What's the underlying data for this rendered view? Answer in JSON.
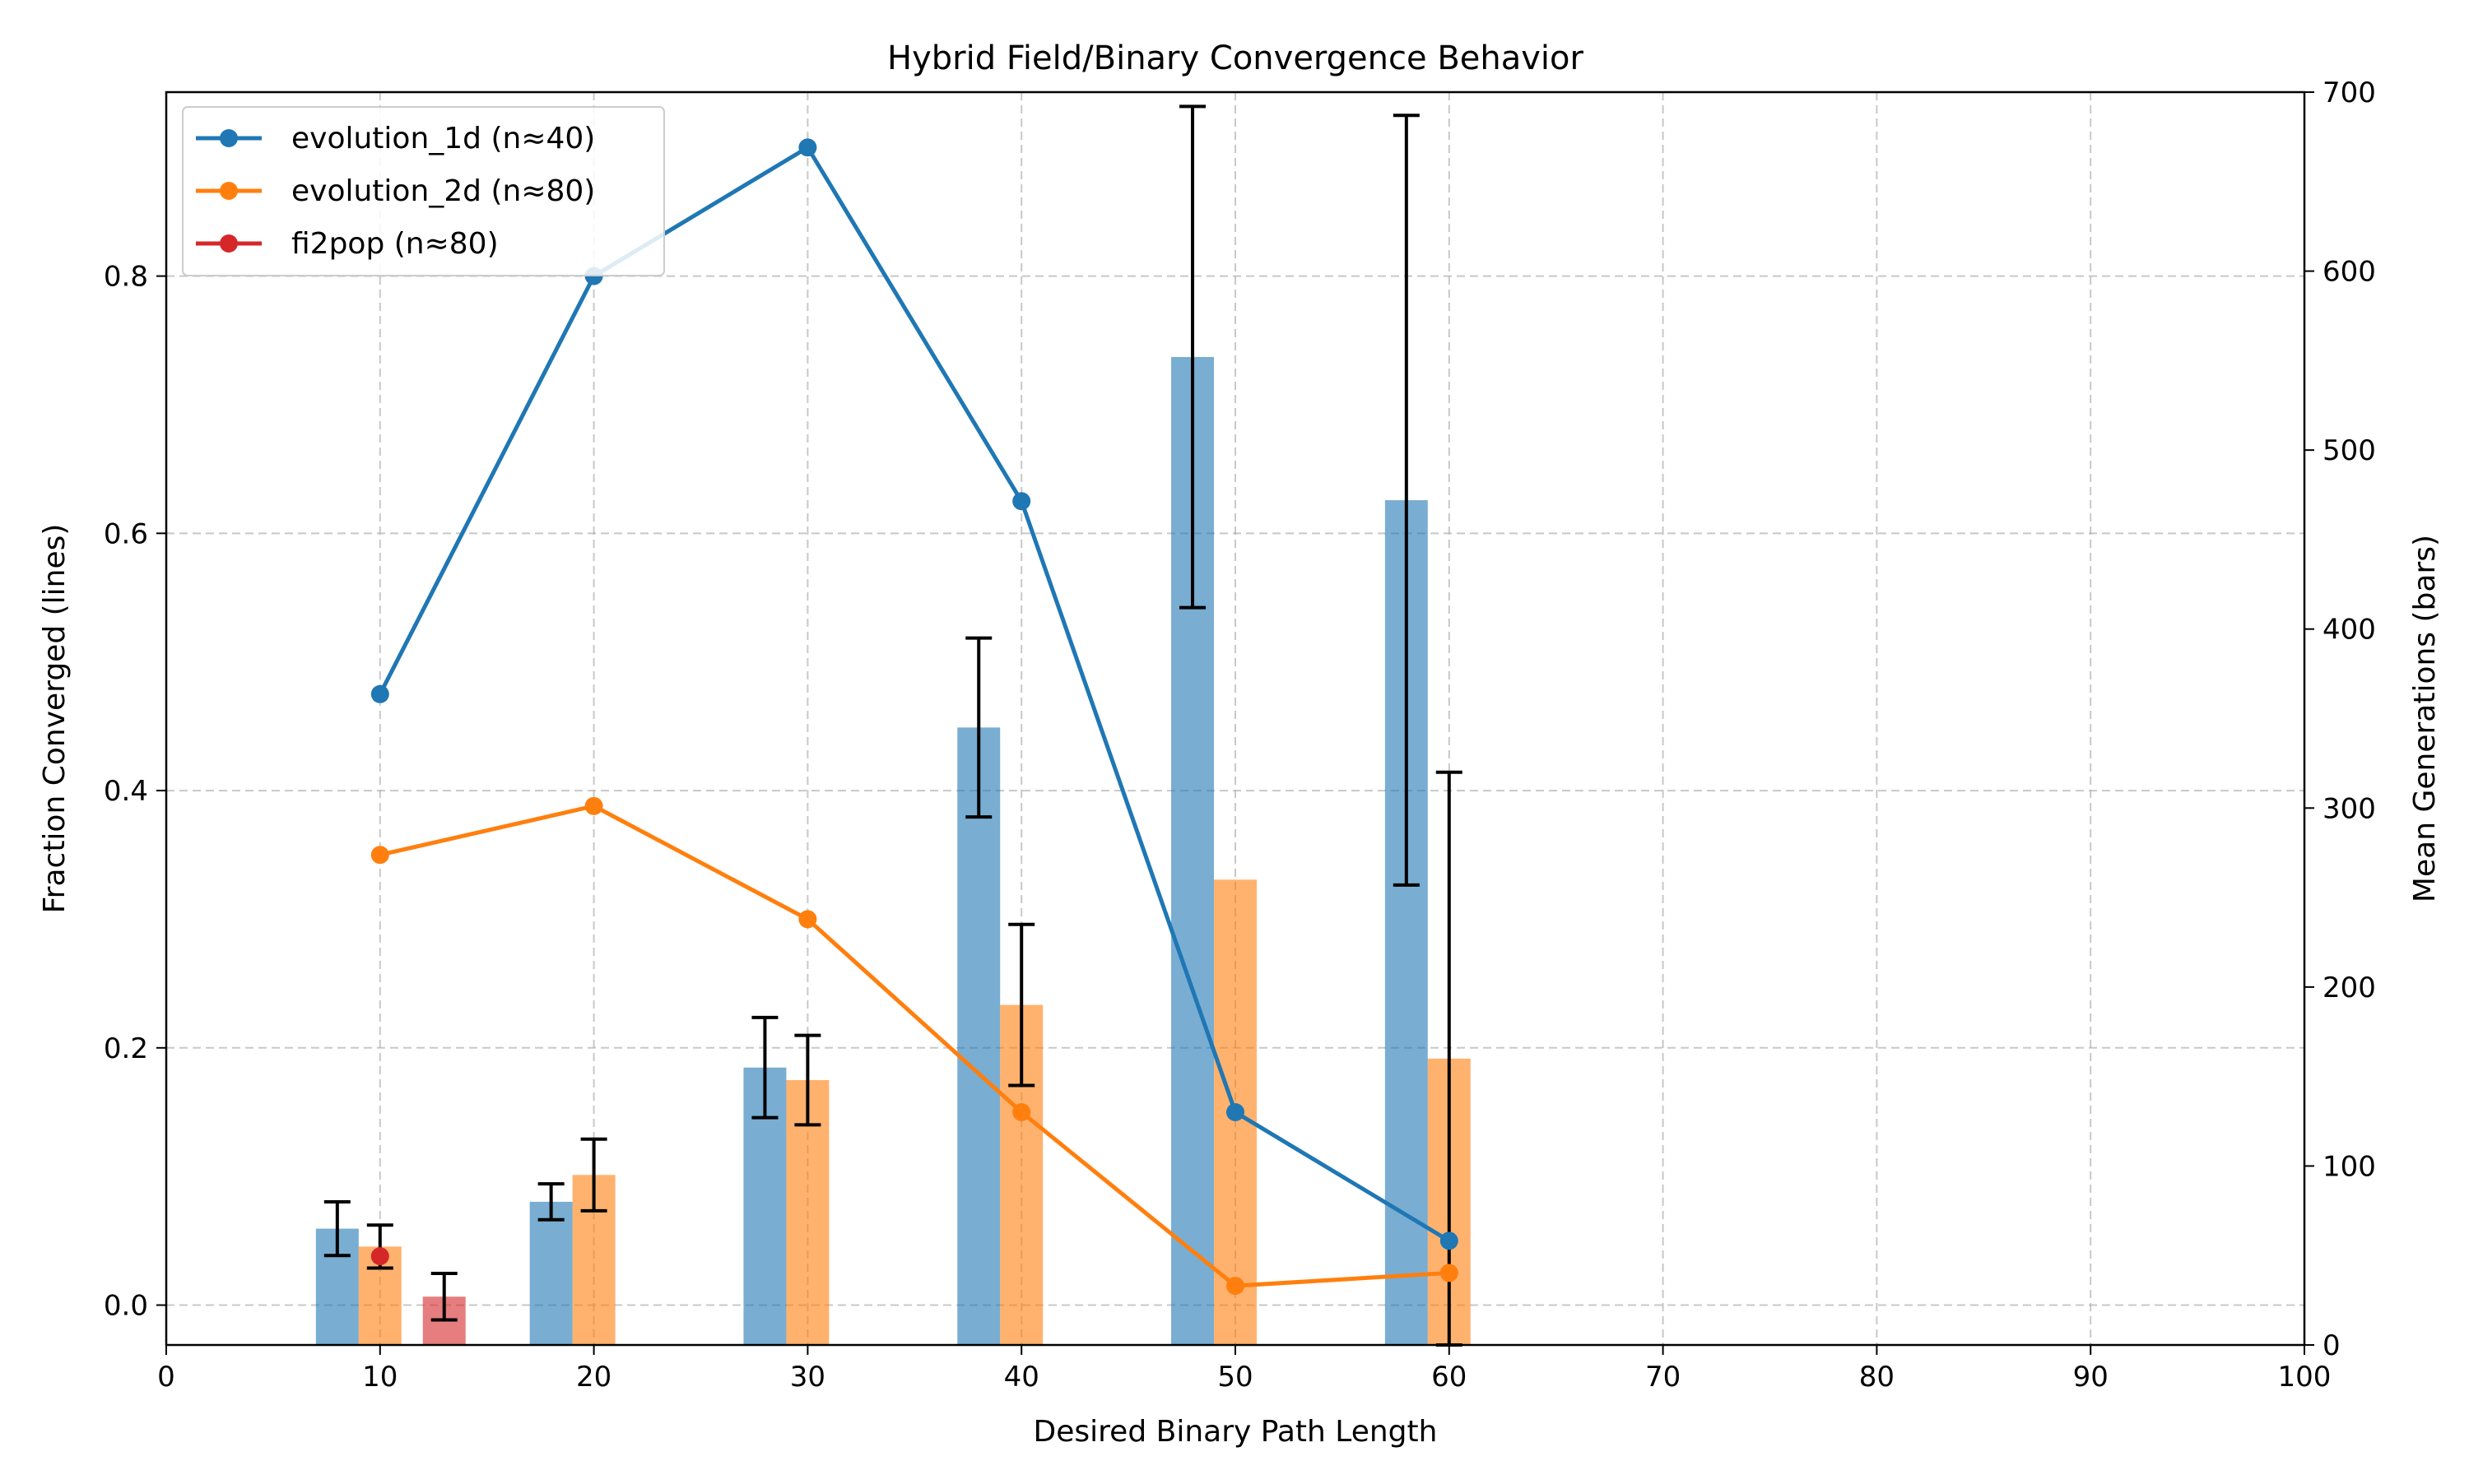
{
  "chart_data": {
    "type": "bar+line",
    "title": "Hybrid Field/Binary Convergence Behavior",
    "xlabel": "Desired Binary Path Length",
    "ylabel_left": "Fraction Converged (lines)",
    "ylabel_right": "Mean Generations (bars)",
    "xlim": [
      0,
      100
    ],
    "ylim_left": [
      -0.031,
      0.943
    ],
    "ylim_right": [
      0,
      700
    ],
    "x_ticks": [
      "0",
      "10",
      "20",
      "30",
      "40",
      "50",
      "60",
      "70",
      "80",
      "90",
      "100"
    ],
    "y_left_ticks": [
      "0.0",
      "0.2",
      "0.4",
      "0.6",
      "0.8"
    ],
    "y_right_ticks": [
      "0",
      "100",
      "200",
      "300",
      "400",
      "500",
      "600",
      "700"
    ],
    "grid": true,
    "legend_position": "upper-left",
    "series": [
      {
        "name": "evolution_1d (n≈40)",
        "color": "#1f77b4",
        "x": [
          10,
          20,
          30,
          40,
          50,
          60
        ],
        "fraction": [
          0.475,
          0.8,
          0.9,
          0.625,
          0.15,
          0.05
        ],
        "bar_x": [
          8,
          18,
          28,
          38,
          48,
          58
        ],
        "mean_generations": [
          65,
          80,
          155,
          345,
          552,
          472
        ],
        "gen_err": [
          15,
          10,
          28,
          50,
          140,
          215
        ]
      },
      {
        "name": "evolution_2d (n≈80)",
        "color": "#ff7f0e",
        "x": [
          10,
          20,
          30,
          40,
          50,
          60
        ],
        "fraction": [
          0.35,
          0.388,
          0.3,
          0.15,
          0.015,
          0.025
        ],
        "bar_x": [
          10,
          20,
          30,
          40,
          50,
          60
        ],
        "mean_generations": [
          55,
          95,
          148,
          190,
          260,
          160
        ],
        "gen_err": [
          12,
          20,
          25,
          45,
          0,
          160
        ]
      },
      {
        "name": "fi2pop (n≈80)",
        "color": "#d62728",
        "x": [
          10
        ],
        "fraction": [
          0.038
        ],
        "bar_x": [
          13
        ],
        "mean_generations": [
          27
        ],
        "gen_err": [
          13
        ]
      }
    ]
  }
}
